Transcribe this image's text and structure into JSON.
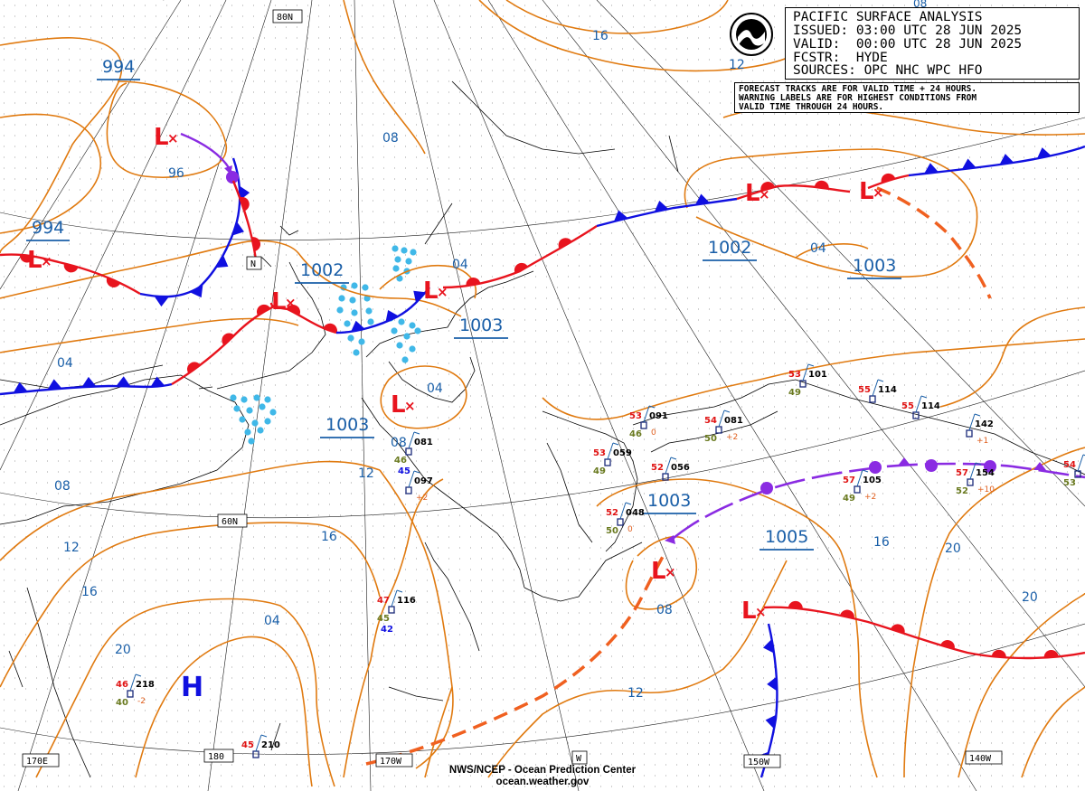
{
  "header": {
    "title": "PACIFIC SURFACE ANALYSIS",
    "issued": "ISSUED: 03:00 UTC 28 JUN 2025",
    "valid": "VALID:  00:00 UTC 28 JUN 2025",
    "forecaster": "FCSTR:  HYDE",
    "sources": "SOURCES: OPC NHC WPC HFO",
    "logo_text": "NOAA"
  },
  "note": {
    "line1": "FORECAST TRACKS ARE FOR VALID TIME + 24 HOURS.",
    "line2": "WARNING LABELS ARE FOR HIGHEST CONDITIONS FROM",
    "line3": "VALID TIME THROUGH 24 HOURS."
  },
  "footer": {
    "line1": "NWS/NCEP - Ocean Prediction Center",
    "line2": "ocean.weather.gov"
  },
  "colors": {
    "isobar": "#e07a10",
    "isobar_label": "#1a5fa8",
    "warm_front": "#e8141e",
    "cold_front": "#1010e0",
    "occluded_front": "#8a2be2",
    "forecast_track": "#f06020",
    "low_symbol": "#e8141e",
    "high_symbol": "#1010e0",
    "ice": "#40b8e8",
    "coast": "#000000",
    "grid": "#000000"
  },
  "lat_lon_labels": {
    "lat_80n": "80N",
    "lat_70n": "N",
    "lat_60n": "60N",
    "lon_170e": "170E",
    "lon_180": "180",
    "lon_170w": "170W",
    "lon_160w": "W",
    "lon_150w": "150W",
    "lon_140w": "140W",
    "top_08": "08"
  },
  "pressure_centers": {
    "lows": [
      {
        "label": "994"
      },
      {
        "label": "994"
      },
      {
        "label": "1002"
      },
      {
        "label": "1003"
      },
      {
        "label": "1003"
      },
      {
        "label": "1002"
      },
      {
        "label": "1003"
      },
      {
        "label": "1003"
      },
      {
        "label": "1005"
      }
    ],
    "high": {
      "label": "H"
    },
    "low_letter": "L"
  },
  "isobar_labels": [
    "16",
    "12",
    "08",
    "96",
    "04",
    "04",
    "04",
    "04",
    "08",
    "12",
    "08",
    "12",
    "16",
    "16",
    "20",
    "20",
    "04",
    "08",
    "12",
    "16",
    "20"
  ],
  "observations": [
    {
      "t": "53",
      "p": "101",
      "d": "49",
      "id": "obs-101"
    },
    {
      "t": "55",
      "p": "114",
      "d": "",
      "id": "obs-114a"
    },
    {
      "t": "55",
      "p": "114",
      "d": "",
      "id": "obs-114b"
    },
    {
      "t": "53",
      "p": "091",
      "d": "46",
      "tend": "0",
      "id": "obs-091"
    },
    {
      "t": "54",
      "p": "081",
      "d": "50",
      "tend": "+2",
      "id": "obs-081b"
    },
    {
      "t": "",
      "p": "142",
      "d": "",
      "tend": "+1",
      "id": "obs-142"
    },
    {
      "t": "53",
      "p": "059",
      "d": "49",
      "id": "obs-059"
    },
    {
      "t": "52",
      "p": "056",
      "d": "",
      "id": "obs-056"
    },
    {
      "t": "57",
      "p": "105",
      "d": "49",
      "tend": "+2",
      "id": "obs-105"
    },
    {
      "t": "57",
      "p": "154",
      "d": "52",
      "tend": "+10",
      "id": "obs-154"
    },
    {
      "t": "54",
      "p": "",
      "d": "53",
      "id": "obs-edge"
    },
    {
      "t": "52",
      "p": "048",
      "d": "50",
      "tend": "0",
      "id": "obs-048"
    },
    {
      "t": "",
      "p": "081",
      "d": "46",
      "d2": "45",
      "id": "obs-081a"
    },
    {
      "t": "",
      "p": "097",
      "d": "",
      "tend": "+2",
      "id": "obs-097"
    },
    {
      "t": "47",
      "p": "116",
      "d": "45",
      "d2": "42",
      "id": "obs-116"
    },
    {
      "t": "46",
      "p": "218",
      "d": "40",
      "tend": "-2",
      "id": "obs-218"
    },
    {
      "t": "45",
      "p": "210",
      "d": "",
      "id": "obs-210"
    }
  ]
}
